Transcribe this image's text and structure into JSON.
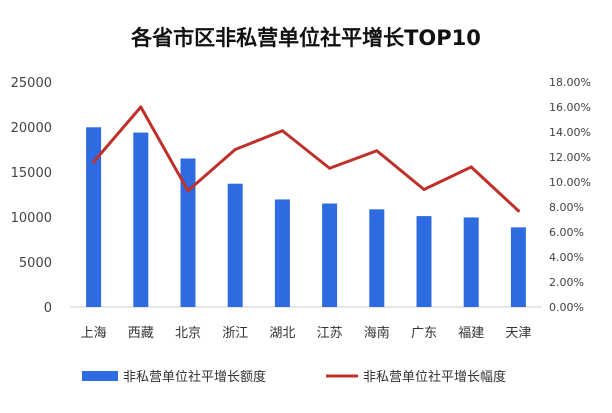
{
  "chart_data": {
    "type": "bar",
    "title": "各省市区非私营单位社平增长TOP10",
    "categories": [
      "上海",
      "西藏",
      "北京",
      "浙江",
      "湖北",
      "江苏",
      "海南",
      "广东",
      "福建",
      "天津"
    ],
    "series": [
      {
        "name": "非私营单位社平增长额度",
        "type": "bar",
        "axis": "left",
        "color": "#2F6BE0",
        "values": [
          19970,
          19380,
          16500,
          13700,
          11950,
          11500,
          10850,
          10100,
          9950,
          8850
        ]
      },
      {
        "name": "非私营单位社平增长幅度",
        "type": "line",
        "axis": "right",
        "color": "#C0302B",
        "values": [
          11.6,
          16.0,
          9.3,
          12.6,
          14.1,
          11.1,
          12.5,
          9.4,
          11.2,
          7.7
        ]
      }
    ],
    "y_left": {
      "ylim": [
        0,
        25000
      ],
      "ticks": [
        "0",
        "5000",
        "10000",
        "15000",
        "20000",
        "25000"
      ]
    },
    "y_right": {
      "ylim": [
        0,
        18
      ],
      "ticks": [
        "0.00%",
        "2.00%",
        "4.00%",
        "6.00%",
        "8.00%",
        "10.00%",
        "12.00%",
        "14.00%",
        "16.00%",
        "18.00%"
      ]
    },
    "grid": false,
    "legend_position": "bottom"
  }
}
